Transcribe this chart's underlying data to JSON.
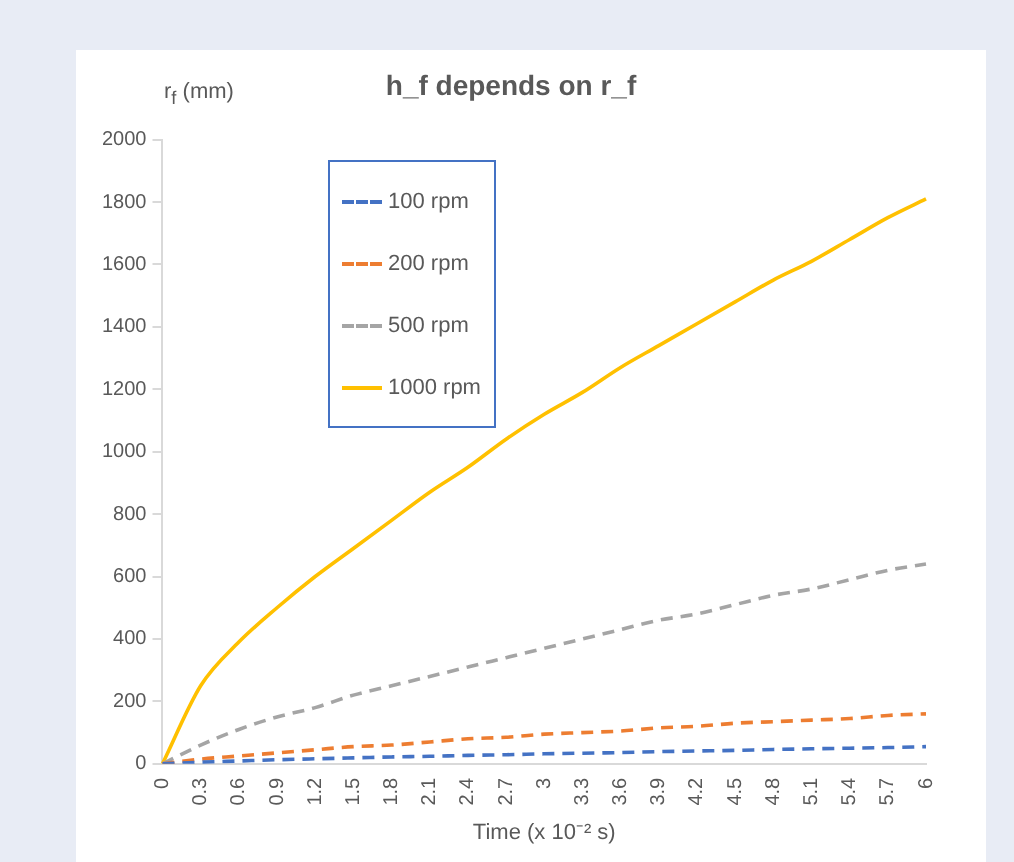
{
  "chart_data": {
    "type": "line",
    "title": "h_f depends on r_f",
    "ylabel": "r$_{f}$ (mm)",
    "xlabel": "Time (x 10⁻² s)",
    "categories": [
      "0",
      "0.3",
      "0.6",
      "0.9",
      "1.2",
      "1.5",
      "1.8",
      "2.1",
      "2.4",
      "2.7",
      "3",
      "3.3",
      "3.6",
      "3.9",
      "4.2",
      "4.5",
      "4.8",
      "5.1",
      "5.4",
      "5.7",
      "6"
    ],
    "series": [
      {
        "name": "100 rpm",
        "color": "#4472c4",
        "line_style": "dashed",
        "values": [
          0,
          5,
          9,
          13,
          16,
          19,
          22,
          24,
          27,
          29,
          32,
          34,
          36,
          39,
          41,
          43,
          46,
          48,
          50,
          52,
          55
        ]
      },
      {
        "name": "200 rpm",
        "color": "#ed7d31",
        "line_style": "dashed",
        "values": [
          0,
          15,
          25,
          35,
          45,
          55,
          60,
          70,
          80,
          85,
          95,
          100,
          105,
          115,
          120,
          130,
          135,
          140,
          145,
          155,
          160
        ]
      },
      {
        "name": "500 rpm",
        "color": "#a5a5a5",
        "line_style": "dashed",
        "values": [
          0,
          60,
          110,
          150,
          180,
          220,
          250,
          280,
          310,
          340,
          370,
          400,
          430,
          460,
          480,
          510,
          540,
          560,
          590,
          620,
          640
        ]
      },
      {
        "name": "1000 rpm",
        "color": "#ffc000",
        "line_style": "solid",
        "values": [
          0,
          250,
          390,
          500,
          600,
          690,
          780,
          870,
          950,
          1040,
          1120,
          1190,
          1270,
          1340,
          1410,
          1480,
          1550,
          1610,
          1680,
          1750,
          1810
        ]
      }
    ],
    "ylim": [
      0,
      2000
    ],
    "yticks": [
      0,
      200,
      400,
      600,
      800,
      1000,
      1200,
      1400,
      1600,
      1800,
      2000
    ],
    "grid": false,
    "legend": "top left",
    "marker": "none"
  }
}
